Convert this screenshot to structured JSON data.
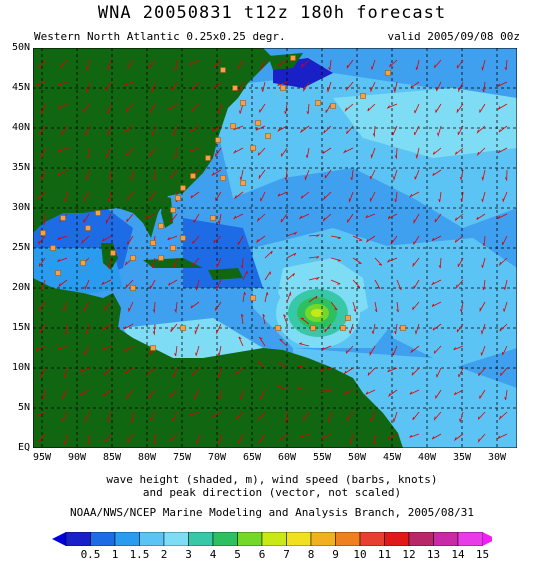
{
  "header": {
    "title": "WNA 20050831 t12z 180h forecast",
    "region_label": "Western North Atlantic 0.25x0.25 degr.",
    "valid_label": "valid 2005/09/08 00z"
  },
  "axes": {
    "lat_labels": [
      "50N",
      "45N",
      "40N",
      "35N",
      "30N",
      "25N",
      "20N",
      "15N",
      "10N",
      "5N",
      "EQ"
    ],
    "lon_labels": [
      "95W",
      "90W",
      "85W",
      "80W",
      "75W",
      "70W",
      "65W",
      "60W",
      "55W",
      "50W",
      "45W",
      "40W",
      "35W",
      "30W"
    ]
  },
  "description": {
    "line1": "wave height (shaded, m), wind speed (barbs, knots)",
    "line2": "and peak direction (vector, not scaled)"
  },
  "credit": "NOAA/NWS/NCEP Marine Modeling and Analysis Branch, 2005/08/31",
  "colorbar": {
    "labels": [
      "0.5",
      "1",
      "1.5",
      "2",
      "3",
      "4",
      "5",
      "6",
      "7",
      "8",
      "9",
      "10",
      "11",
      "12",
      "13",
      "14",
      "15"
    ],
    "colors": [
      "#1a20c8",
      "#1e6be6",
      "#2a9cf0",
      "#5cc4f4",
      "#7edcf4",
      "#38c8a8",
      "#2ec060",
      "#74d828",
      "#c8e818",
      "#f0e020",
      "#f0b020",
      "#ee8020",
      "#e84030",
      "#e01818",
      "#b82868",
      "#c82aa8",
      "#e83ce8"
    ],
    "arrow_colors": [
      "#0000d8",
      "#f020f0"
    ]
  },
  "map": {
    "land_color": "#116611",
    "ocean_color": "#3fa0f0",
    "grid_color": "#000000",
    "vector_color": "#dd0000",
    "station_color": "#f5a04a"
  }
}
